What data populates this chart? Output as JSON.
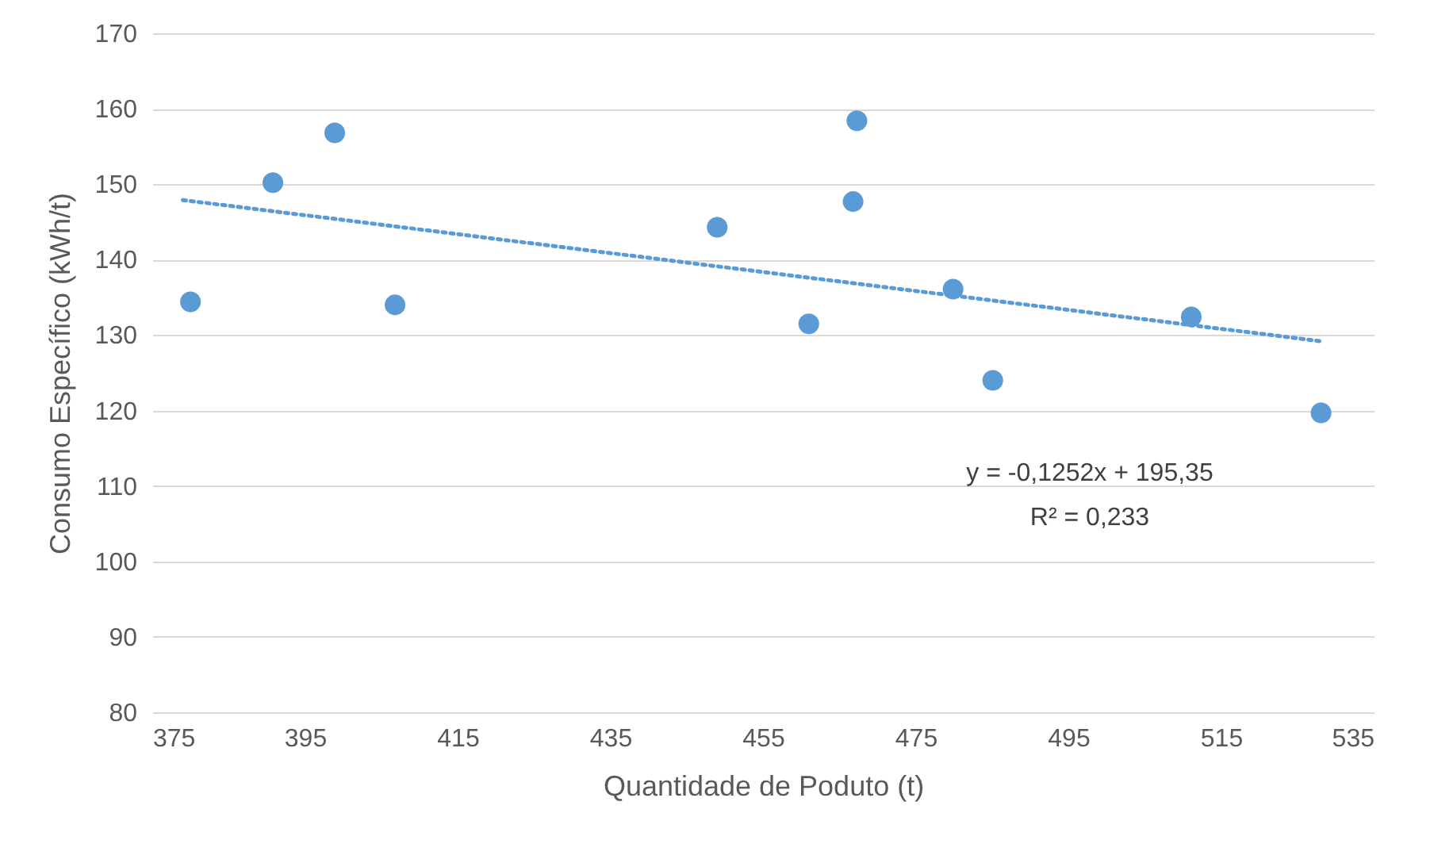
{
  "chart_data": {
    "type": "scatter",
    "xlabel": "Quantidade de Poduto (t)",
    "ylabel": "Consumo Específico (kWh/t)",
    "xlim": [
      375,
      535
    ],
    "xticks": [
      375,
      395,
      415,
      435,
      455,
      475,
      495,
      515,
      535
    ],
    "ylim": [
      80,
      170
    ],
    "yticks": [
      80,
      90,
      100,
      110,
      120,
      130,
      140,
      150,
      160,
      170
    ],
    "grid": "y",
    "series": [
      {
        "color": "#5b9bd5",
        "marker": "circle",
        "x": [
          380.0,
          390.8,
          398.9,
          406.8,
          449.0,
          461.0,
          467.3,
          466.8,
          479.9,
          485.1,
          511.1,
          528.1
        ],
        "values": [
          134.4,
          150.2,
          156.8,
          134.0,
          144.3,
          131.5,
          158.4,
          147.7,
          136.1,
          124.0,
          132.4,
          119.7
        ]
      },
      {
        "type": "line",
        "color": "#5b9bd5",
        "line_style": "dotted",
        "x": [
          379,
          528
        ],
        "values": [
          147.9,
          129.2
        ]
      }
    ],
    "annotations": [
      "y = -0,1252x + 195,35",
      "R² = 0,233"
    ]
  }
}
